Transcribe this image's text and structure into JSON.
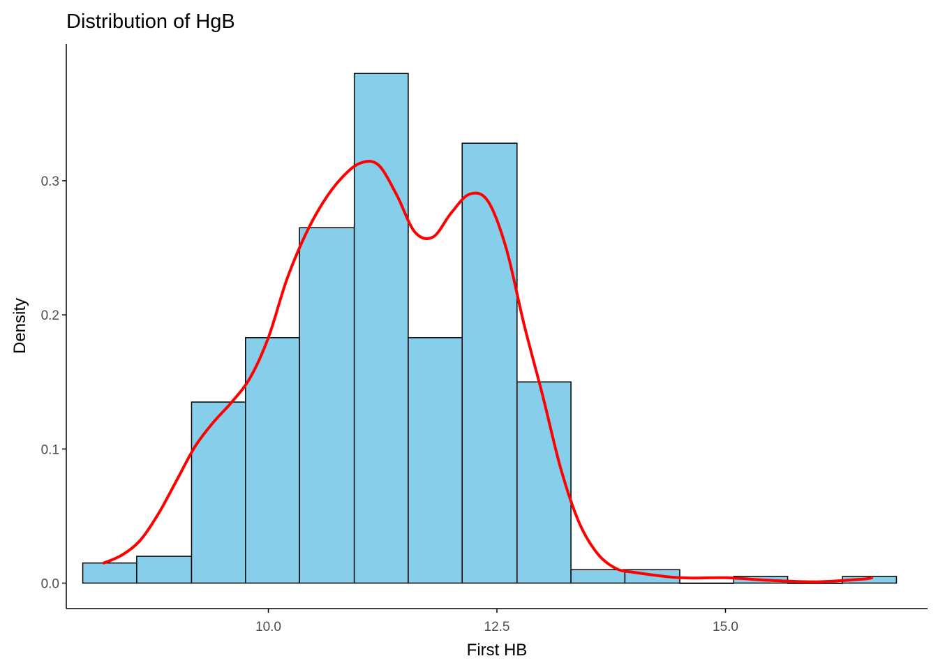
{
  "chart_data": {
    "type": "bar",
    "title": "Distribution of HgB",
    "xlabel": "First HB",
    "ylabel": "Density",
    "xlim": [
      7.79,
      17.21
    ],
    "ylim": [
      -0.019,
      0.402
    ],
    "x_ticks": [
      {
        "value": 10.0,
        "label": "10.0"
      },
      {
        "value": 12.5,
        "label": "12.5"
      },
      {
        "value": 15.0,
        "label": "15.0"
      }
    ],
    "y_ticks": [
      {
        "value": 0.0,
        "label": "0.0"
      },
      {
        "value": 0.1,
        "label": "0.1"
      },
      {
        "value": 0.2,
        "label": "0.2"
      },
      {
        "value": 0.3,
        "label": "0.3"
      }
    ],
    "grid": false,
    "legend": "none",
    "histogram": {
      "bins": [
        {
          "x0": 7.97,
          "x1": 8.56,
          "density": 0.015
        },
        {
          "x0": 8.56,
          "x1": 9.16,
          "density": 0.02
        },
        {
          "x0": 9.16,
          "x1": 9.75,
          "density": 0.135
        },
        {
          "x0": 9.75,
          "x1": 10.34,
          "density": 0.183
        },
        {
          "x0": 10.34,
          "x1": 10.94,
          "density": 0.265
        },
        {
          "x0": 10.94,
          "x1": 11.53,
          "density": 0.38
        },
        {
          "x0": 11.53,
          "x1": 12.12,
          "density": 0.183
        },
        {
          "x0": 12.12,
          "x1": 12.72,
          "density": 0.328
        },
        {
          "x0": 12.72,
          "x1": 13.31,
          "density": 0.15
        },
        {
          "x0": 13.31,
          "x1": 13.9,
          "density": 0.01
        },
        {
          "x0": 13.9,
          "x1": 14.5,
          "density": 0.01
        },
        {
          "x0": 14.5,
          "x1": 15.09,
          "density": 0.0
        },
        {
          "x0": 15.09,
          "x1": 15.68,
          "density": 0.005
        },
        {
          "x0": 15.68,
          "x1": 16.28,
          "density": 0.0
        },
        {
          "x0": 16.28,
          "x1": 16.87,
          "density": 0.005
        }
      ],
      "fill": "#87CEEB",
      "stroke": "#000000"
    },
    "density_curve": {
      "color": "#FF0000",
      "x": [
        8.2,
        8.4,
        8.6,
        8.8,
        9.0,
        9.2,
        9.4,
        9.6,
        9.8,
        10.0,
        10.2,
        10.4,
        10.6,
        10.8,
        11.0,
        11.2,
        11.4,
        11.6,
        11.8,
        12.0,
        12.2,
        12.4,
        12.6,
        12.8,
        13.0,
        13.2,
        13.4,
        13.6,
        13.8,
        14.0,
        14.5,
        15.0,
        15.5,
        16.0,
        16.5,
        16.6
      ],
      "y": [
        0.015,
        0.021,
        0.032,
        0.052,
        0.077,
        0.102,
        0.12,
        0.135,
        0.153,
        0.183,
        0.226,
        0.259,
        0.284,
        0.302,
        0.313,
        0.312,
        0.29,
        0.262,
        0.258,
        0.276,
        0.29,
        0.285,
        0.25,
        0.192,
        0.14,
        0.085,
        0.045,
        0.022,
        0.011,
        0.008,
        0.004,
        0.004,
        0.002,
        0.001,
        0.003,
        0.004
      ]
    }
  }
}
